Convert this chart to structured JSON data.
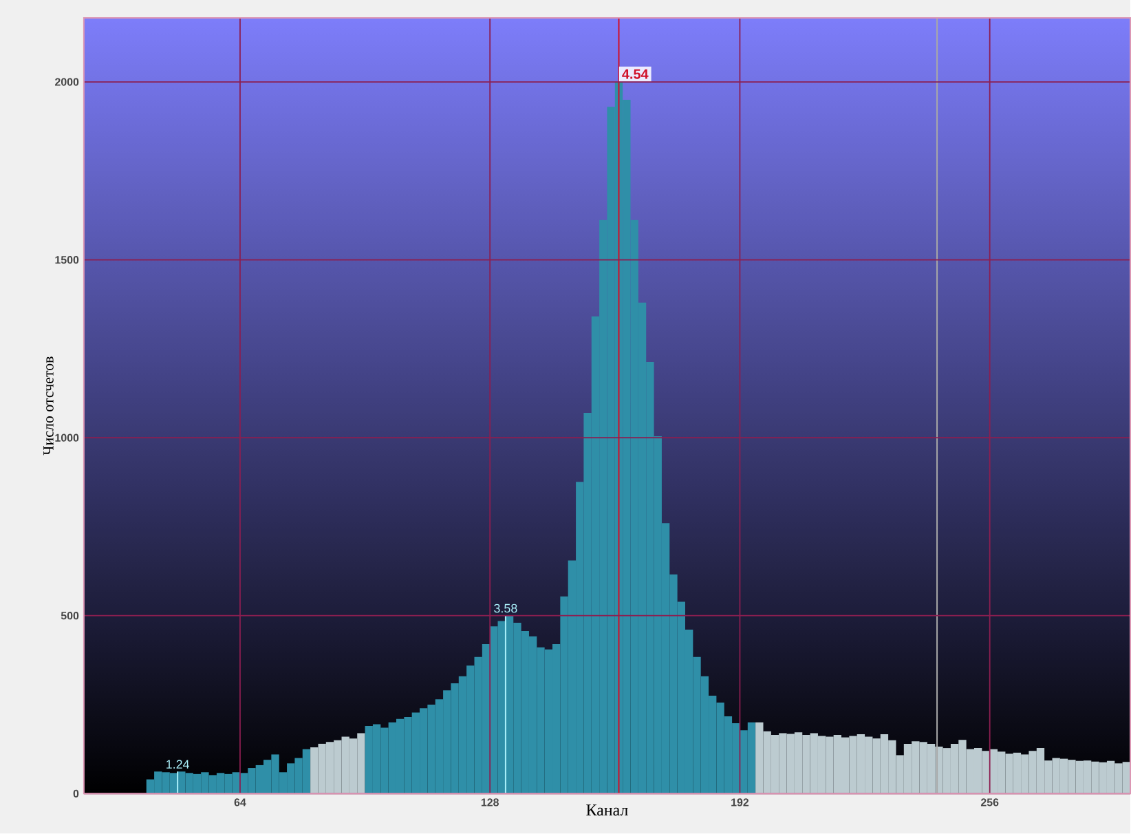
{
  "chart_data": {
    "type": "histogram",
    "xlabel": "Канал",
    "ylabel": "Число отсчетов",
    "bins": [
      40,
      42,
      44,
      46,
      48,
      50,
      52,
      54,
      56,
      58,
      60,
      62,
      64,
      66,
      68,
      70,
      72,
      74,
      76,
      78,
      80,
      82,
      84,
      86,
      88,
      90,
      92,
      94,
      96,
      98,
      100,
      102,
      104,
      106,
      108,
      110,
      112,
      114,
      116,
      118,
      120,
      122,
      124,
      126,
      128,
      130,
      132,
      134,
      136,
      138,
      140,
      142,
      144,
      146,
      148,
      150,
      152,
      154,
      156,
      158,
      160,
      162,
      164,
      166,
      168,
      170,
      172,
      174,
      176,
      178,
      180,
      182,
      184,
      186,
      188,
      190,
      192,
      194,
      196,
      198,
      200,
      202,
      204,
      206,
      208,
      210,
      212,
      214,
      216,
      218,
      220,
      222,
      224,
      226,
      228,
      230,
      232,
      234,
      236,
      238,
      240,
      242,
      244,
      246,
      248,
      250,
      252,
      254,
      256,
      258,
      260,
      262,
      264,
      266,
      268,
      270,
      272,
      274,
      276,
      278,
      280,
      282,
      284,
      286,
      288,
      290,
      292
    ],
    "values": [
      40,
      62,
      60,
      58,
      62,
      58,
      55,
      60,
      52,
      58,
      55,
      60,
      58,
      72,
      80,
      95,
      110,
      60,
      85,
      100,
      125,
      130,
      140,
      145,
      150,
      160,
      155,
      170,
      190,
      195,
      185,
      200,
      210,
      215,
      228,
      240,
      250,
      265,
      290,
      310,
      330,
      360,
      384,
      420,
      470,
      485,
      500,
      480,
      457,
      442,
      411,
      405,
      420,
      554,
      655,
      876,
      1070,
      1341,
      1612,
      1930,
      2000,
      1950,
      1612,
      1380,
      1213,
      1004,
      760,
      616,
      539,
      461,
      384,
      330,
      275,
      256,
      217,
      198,
      178,
      200,
      200,
      175,
      165,
      170,
      168,
      172,
      165,
      170,
      162,
      160,
      165,
      158,
      162,
      167,
      160,
      155,
      167,
      150,
      108,
      140,
      147,
      145,
      140,
      132,
      128,
      140,
      151,
      125,
      128,
      120,
      125,
      118,
      112,
      115,
      110,
      120,
      128,
      93,
      100,
      98,
      95,
      92,
      93,
      90,
      88,
      92,
      85,
      89
    ],
    "colors": [
      "#2f8fa8",
      "#2f8fa8",
      "#2f8fa8",
      "#2f8fa8",
      "#2f8fa8",
      "#2f8fa8",
      "#2f8fa8",
      "#2f8fa8",
      "#2f8fa8",
      "#2f8fa8",
      "#2f8fa8",
      "#2f8fa8",
      "#2f8fa8",
      "#2f8fa8",
      "#2f8fa8",
      "#2f8fa8",
      "#2f8fa8",
      "#2f8fa8",
      "#2f8fa8",
      "#2f8fa8",
      "#2f8fa8",
      "#bccbd0",
      "#bccbd0",
      "#bccbd0",
      "#bccbd0",
      "#bccbd0",
      "#bccbd0",
      "#bccbd0",
      "#2f8fa8",
      "#2f8fa8",
      "#2f8fa8",
      "#2f8fa8",
      "#2f8fa8",
      "#2f8fa8",
      "#2f8fa8",
      "#2f8fa8",
      "#2f8fa8",
      "#2f8fa8",
      "#2f8fa8",
      "#2f8fa8",
      "#2f8fa8",
      "#2f8fa8",
      "#2f8fa8",
      "#2f8fa8",
      "#2f8fa8",
      "#2f8fa8",
      "#2f8fa8",
      "#2f8fa8",
      "#2f8fa8",
      "#2f8fa8",
      "#2f8fa8",
      "#2f8fa8",
      "#2f8fa8",
      "#2f8fa8",
      "#2f8fa8",
      "#2f8fa8",
      "#2f8fa8",
      "#2f8fa8",
      "#2f8fa8",
      "#2f8fa8",
      "#2f8fa8",
      "#2f8fa8",
      "#2f8fa8",
      "#2f8fa8",
      "#2f8fa8",
      "#2f8fa8",
      "#2f8fa8",
      "#2f8fa8",
      "#2f8fa8",
      "#2f8fa8",
      "#2f8fa8",
      "#2f8fa8",
      "#2f8fa8",
      "#2f8fa8",
      "#2f8fa8",
      "#2f8fa8",
      "#2f8fa8",
      "#2f8fa8",
      "#bccbd0",
      "#bccbd0",
      "#bccbd0",
      "#bccbd0",
      "#bccbd0",
      "#bccbd0",
      "#bccbd0",
      "#bccbd0",
      "#bccbd0",
      "#bccbd0",
      "#bccbd0",
      "#bccbd0",
      "#bccbd0",
      "#bccbd0",
      "#bccbd0",
      "#bccbd0",
      "#bccbd0",
      "#bccbd0",
      "#bccbd0",
      "#bccbd0",
      "#bccbd0",
      "#bccbd0",
      "#bccbd0",
      "#bccbd0",
      "#bccbd0",
      "#bccbd0",
      "#bccbd0",
      "#bccbd0",
      "#bccbd0",
      "#bccbd0",
      "#bccbd0",
      "#bccbd0",
      "#bccbd0",
      "#bccbd0",
      "#bccbd0",
      "#bccbd0",
      "#bccbd0",
      "#bccbd0",
      "#bccbd0",
      "#bccbd0",
      "#bccbd0",
      "#bccbd0",
      "#bccbd0",
      "#bccbd0",
      "#bccbd0",
      "#bccbd0",
      "#bccbd0",
      "#bccbd0"
    ],
    "xlim": [
      24,
      292
    ],
    "ylim": [
      0,
      2180
    ],
    "xticks": [
      64,
      128,
      192,
      256
    ],
    "yticks": [
      0,
      500,
      1000,
      1500,
      2000
    ],
    "grid": true,
    "ref_lines": [
      {
        "axis": "x",
        "value": 242.5,
        "color": "#a8a8a8"
      },
      {
        "axis": "x",
        "value": 161,
        "color": "#d0102a"
      }
    ],
    "annotations": [
      {
        "text": "1.24",
        "x": 48,
        "y": 62
      },
      {
        "text": "3.58",
        "x": 132,
        "y": 500
      },
      {
        "text": "4.54",
        "x": 161,
        "y": 2000
      }
    ]
  }
}
